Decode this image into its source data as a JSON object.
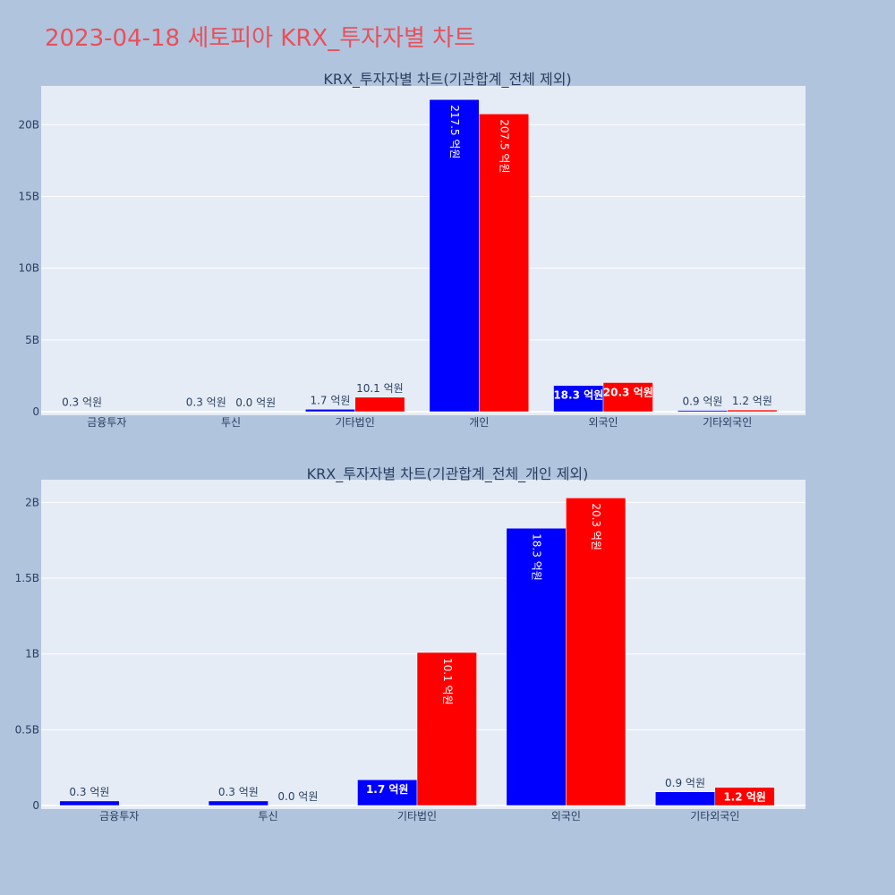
{
  "title": "2023-04-18 세토피아 KRX_투자자별 차트",
  "colors": {
    "page_bg": "#b0c4de",
    "plot_bg": "#e5ecf6",
    "grid": "#ffffff",
    "title": "#e8505b",
    "text": "#2a3f5f",
    "series_buy": "#0000ff",
    "series_sell": "#ff0000"
  },
  "chart_data": [
    {
      "type": "bar",
      "title": "KRX_투자자별 차트(기관합계_전체 제외)",
      "categories": [
        "금융투자",
        "투신",
        "기타법인",
        "개인",
        "외국인",
        "기타외국인"
      ],
      "series": [
        {
          "color": "#0000ff",
          "values": [
            30000000,
            30000000,
            170000000,
            21750000000,
            1830000000,
            90000000
          ],
          "labels": [
            "0.3 억원",
            "0.3 억원",
            "1.7 억원",
            "217.5 억원",
            "18.3 억원",
            "0.9 억원"
          ]
        },
        {
          "color": "#ff0000",
          "values": [
            null,
            0,
            1010000000,
            20750000000,
            2030000000,
            120000000
          ],
          "labels": [
            "",
            "0.0 억원",
            "10.1 억원",
            "207.5 억원",
            "20.3 억원",
            "1.2 억원"
          ]
        }
      ],
      "yticks": [
        0,
        5000000000,
        10000000000,
        15000000000,
        20000000000
      ],
      "ytick_labels": [
        "0",
        "5B",
        "10B",
        "15B",
        "20B"
      ],
      "ylim": [
        0,
        22700000000
      ],
      "grid": true,
      "legend": false
    },
    {
      "type": "bar",
      "title": "KRX_투자자별 차트(기관합계_전체_개인 제외)",
      "categories": [
        "금융투자",
        "투신",
        "기타법인",
        "외국인",
        "기타외국인"
      ],
      "series": [
        {
          "color": "#0000ff",
          "values": [
            30000000,
            30000000,
            170000000,
            1830000000,
            90000000
          ],
          "labels": [
            "0.3 억원",
            "0.3 억원",
            "1.7 억원",
            "18.3 억원",
            "0.9 억원"
          ]
        },
        {
          "color": "#ff0000",
          "values": [
            null,
            0,
            1010000000,
            2030000000,
            120000000
          ],
          "labels": [
            "",
            "0.0 억원",
            "10.1 억원",
            "20.3 억원",
            "1.2 억원"
          ]
        }
      ],
      "yticks": [
        0,
        500000000,
        1000000000,
        1500000000,
        2000000000
      ],
      "ytick_labels": [
        "0",
        "0.5B",
        "1B",
        "1.5B",
        "2B"
      ],
      "ylim": [
        0,
        2150000000
      ],
      "grid": true,
      "legend": false
    }
  ]
}
